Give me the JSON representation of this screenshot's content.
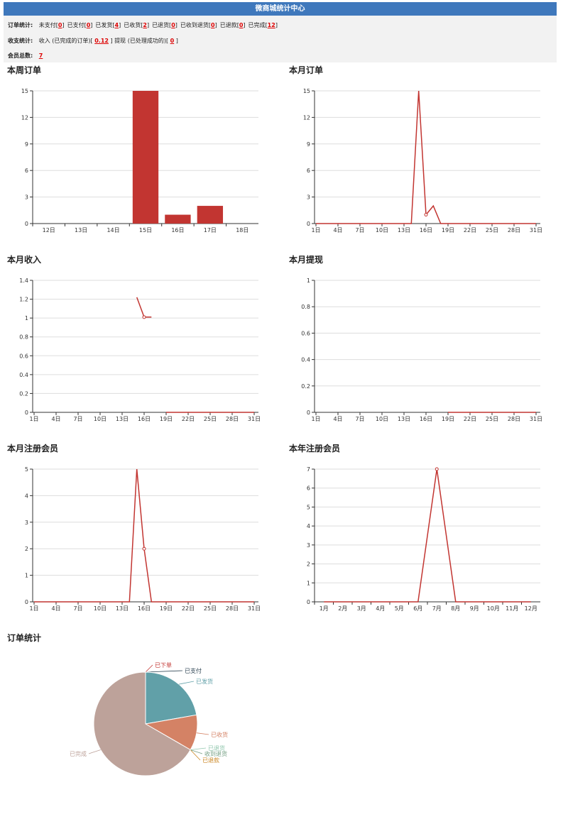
{
  "header": {
    "title": "微商城统计中心"
  },
  "order_stats": {
    "label": "订单统计:",
    "items": [
      {
        "label": "未支付",
        "value": "0"
      },
      {
        "label": "已支付",
        "value": "0"
      },
      {
        "label": "已发货",
        "value": "4"
      },
      {
        "label": "已收货",
        "value": "2"
      },
      {
        "label": "已退货",
        "value": "0"
      },
      {
        "label": "已收到退货",
        "value": "0"
      },
      {
        "label": "已退款",
        "value": "0"
      },
      {
        "label": "已完成",
        "value": "12"
      }
    ]
  },
  "finance_stats": {
    "label": "收支统计:",
    "income_label": "收入 (已完成的订单)",
    "income_value": "0.12",
    "withdraw_label": "提现 (已处理成功的)",
    "withdraw_value": "0"
  },
  "members": {
    "label": "会员总数:",
    "value": "7"
  },
  "colors": {
    "header_bg": "#3f78bc",
    "series": "#c23531",
    "pie": [
      "#c23531",
      "#2f4554",
      "#61a0a8",
      "#d48265",
      "#91c7ae",
      "#749f83",
      "#ca8622",
      "#bda29a"
    ]
  },
  "chart_data": [
    {
      "id": "week_orders",
      "title": "本周订单",
      "type": "bar",
      "categories": [
        "12日",
        "13日",
        "14日",
        "15日",
        "16日",
        "17日",
        "18日"
      ],
      "values": [
        0,
        0,
        0,
        15,
        1,
        2,
        0
      ],
      "ylim": [
        0,
        15
      ],
      "yticks": [
        "0",
        "3",
        "6",
        "9",
        "12",
        "15"
      ]
    },
    {
      "id": "month_orders",
      "title": "本月订单",
      "type": "line",
      "days": 31,
      "x_ticks": [
        "1日",
        "4日",
        "7日",
        "10日",
        "13日",
        "16日",
        "19日",
        "22日",
        "25日",
        "28日",
        "31日"
      ],
      "values": [
        0,
        0,
        0,
        0,
        0,
        0,
        0,
        0,
        0,
        0,
        0,
        0,
        0,
        0,
        15,
        1,
        2,
        0,
        0,
        0,
        0,
        0,
        0,
        0,
        0,
        0,
        0,
        0,
        0,
        0,
        0
      ],
      "ylim": [
        0,
        15
      ],
      "yticks": [
        "0",
        "3",
        "6",
        "9",
        "12",
        "15"
      ]
    },
    {
      "id": "month_income",
      "title": "本月收入",
      "type": "line",
      "days": 31,
      "x_ticks": [
        "1日",
        "4日",
        "7日",
        "10日",
        "13日",
        "16日",
        "19日",
        "22日",
        "25日",
        "28日",
        "31日"
      ],
      "values": [
        null,
        null,
        null,
        null,
        null,
        null,
        null,
        null,
        null,
        null,
        null,
        null,
        null,
        null,
        1.22,
        1.01,
        1.01,
        null,
        0,
        0,
        0,
        0,
        0,
        0,
        0,
        0,
        0,
        0,
        0,
        0,
        0
      ],
      "ylim": [
        0,
        1.4
      ],
      "yticks": [
        "0",
        "0.2",
        "0.4",
        "0.6",
        "0.8",
        "1",
        "1.2",
        "1.4"
      ]
    },
    {
      "id": "month_withdraw",
      "title": "本月提现",
      "type": "line",
      "days": 31,
      "x_ticks": [
        "1日",
        "4日",
        "7日",
        "10日",
        "13日",
        "16日",
        "19日",
        "22日",
        "25日",
        "28日",
        "31日"
      ],
      "values": [
        null,
        null,
        null,
        null,
        null,
        null,
        null,
        null,
        null,
        null,
        null,
        null,
        null,
        null,
        null,
        null,
        null,
        null,
        0,
        0,
        0,
        0,
        0,
        0,
        0,
        0,
        0,
        0,
        0,
        0,
        0
      ],
      "ylim": [
        0,
        1
      ],
      "yticks": [
        "0",
        "0.2",
        "0.4",
        "0.6",
        "0.8",
        "1"
      ]
    },
    {
      "id": "month_members",
      "title": "本月注册会员",
      "type": "line",
      "days": 31,
      "x_ticks": [
        "1日",
        "4日",
        "7日",
        "10日",
        "13日",
        "16日",
        "19日",
        "22日",
        "25日",
        "28日",
        "31日"
      ],
      "values": [
        0,
        0,
        0,
        0,
        0,
        0,
        0,
        0,
        0,
        0,
        0,
        0,
        0,
        0,
        5,
        2,
        0,
        0,
        0,
        0,
        0,
        0,
        0,
        0,
        0,
        0,
        0,
        0,
        0,
        0,
        0
      ],
      "ylim": [
        0,
        5
      ],
      "yticks": [
        "0",
        "1",
        "2",
        "3",
        "4",
        "5"
      ]
    },
    {
      "id": "year_members",
      "title": "本年注册会员",
      "type": "line",
      "categories": [
        "1月",
        "2月",
        "3月",
        "4月",
        "5月",
        "6月",
        "7月",
        "8月",
        "9月",
        "10月",
        "11月",
        "12月"
      ],
      "values": [
        0,
        0,
        0,
        0,
        0,
        0,
        7,
        0,
        0,
        0,
        0,
        0
      ],
      "ylim": [
        0,
        7
      ],
      "yticks": [
        "0",
        "1",
        "2",
        "3",
        "4",
        "5",
        "6",
        "7"
      ]
    },
    {
      "id": "order_pie",
      "title": "订单统计",
      "type": "pie",
      "slices": [
        {
          "name": "已下单",
          "value": 0
        },
        {
          "name": "已支付",
          "value": 0
        },
        {
          "name": "已发货",
          "value": 4
        },
        {
          "name": "已收货",
          "value": 2
        },
        {
          "name": "已退货",
          "value": 0
        },
        {
          "name": "收到退货",
          "value": 0
        },
        {
          "name": "已退款",
          "value": 0
        },
        {
          "name": "已完成",
          "value": 12
        }
      ]
    }
  ]
}
